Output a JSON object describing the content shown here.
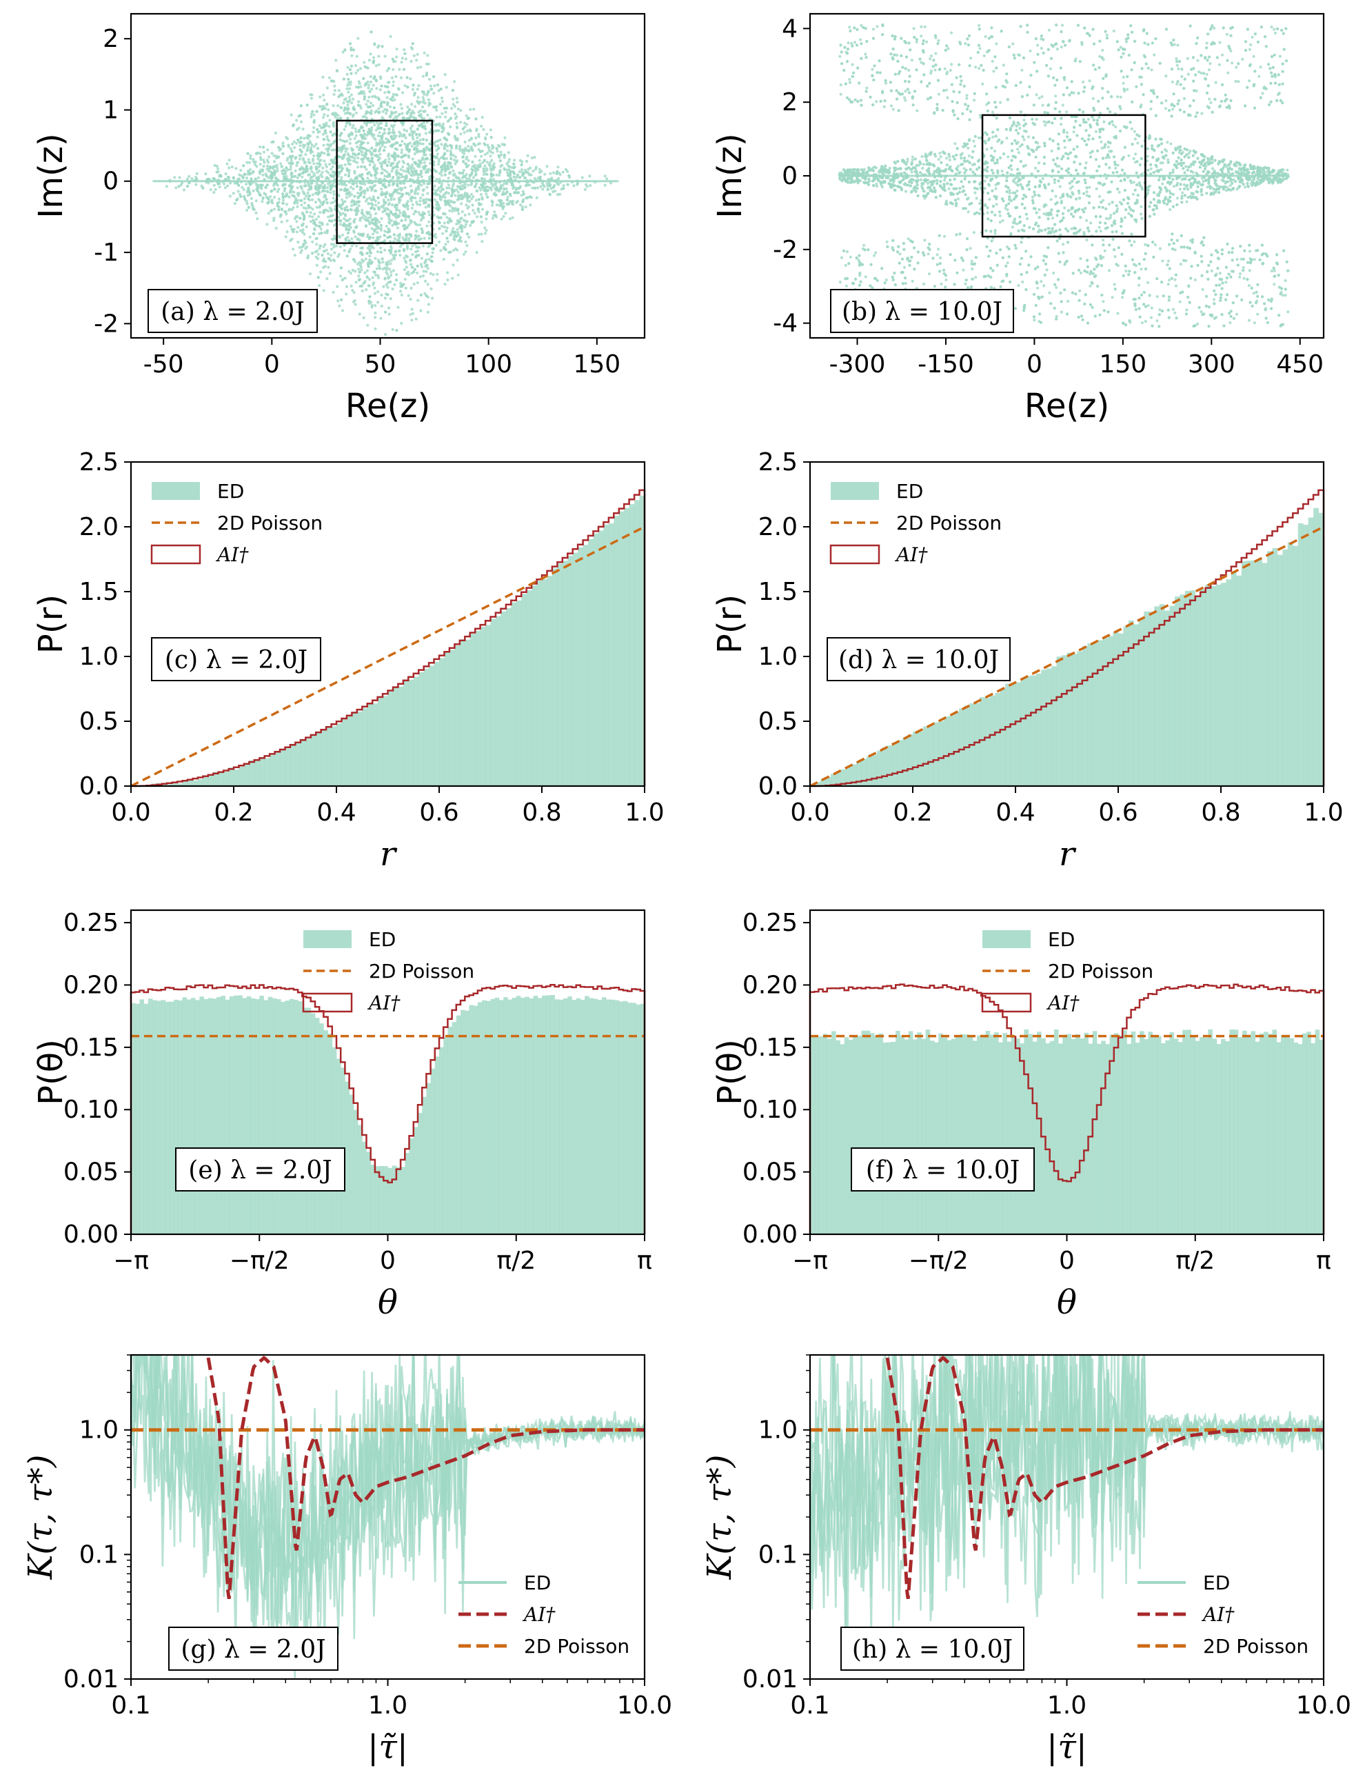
{
  "colors": {
    "ed": "#9fd8c4",
    "ai": "#a8282a",
    "poisson": "#cc6a14",
    "frame": "#000000"
  },
  "legend": {
    "ed": "ED",
    "poisson": "2D Poisson",
    "ai": "AI†"
  },
  "chart_data": [
    {
      "id": "a",
      "type": "scatter",
      "panel_label": "(a) λ = 2.0J",
      "xlabel": "Re(z)",
      "ylabel": "Im(z)",
      "xlim": [
        -65,
        172
      ],
      "ylim": [
        -2.2,
        2.35
      ],
      "xticks": [
        -50,
        0,
        50,
        100,
        150
      ],
      "xticklabels": [
        "-50",
        "0",
        "50",
        "100",
        "150"
      ],
      "yticks": [
        -2,
        -1,
        0,
        1,
        2
      ],
      "yticklabels": [
        "-2",
        "-1",
        "0",
        "1",
        "2"
      ],
      "xrange_points": [
        -55,
        160
      ],
      "center": 52,
      "height_max": 2.1,
      "box": {
        "x": [
          30,
          74
        ],
        "y": [
          -0.87,
          0.85
        ]
      }
    },
    {
      "id": "b",
      "type": "scatter",
      "panel_label": "(b) λ = 10.0J",
      "xlabel": "Re(z)",
      "ylabel": "Im(z)",
      "xlim": [
        -380,
        490
      ],
      "ylim": [
        -4.4,
        4.4
      ],
      "xticks": [
        -300,
        -150,
        0,
        150,
        300,
        450
      ],
      "xticklabels": [
        "-300",
        "-150",
        "0",
        "150",
        "300",
        "450"
      ],
      "yticks": [
        -4,
        -2,
        0,
        2,
        4
      ],
      "yticklabels": [
        "-4",
        "-2",
        "0",
        "2",
        "4"
      ],
      "xrange_points": [
        -330,
        430
      ],
      "center": 50,
      "height_max": 4.1,
      "box": {
        "x": [
          -88,
          188
        ],
        "y": [
          -1.65,
          1.65
        ]
      }
    },
    {
      "id": "c",
      "type": "histogram",
      "panel_label": "(c) λ = 2.0J",
      "xlabel": "r",
      "ylabel": "P(r)",
      "xlim": [
        0,
        1
      ],
      "ylim": [
        0,
        2.5
      ],
      "xticks": [
        0,
        0.2,
        0.4,
        0.6,
        0.8,
        1.0
      ],
      "xticklabels": [
        "0.0",
        "0.2",
        "0.4",
        "0.6",
        "0.8",
        "1.0"
      ],
      "yticks": [
        0,
        0.5,
        1.0,
        1.5,
        2.0,
        2.5
      ],
      "yticklabels": [
        "0.0",
        "0.5",
        "1.0",
        "1.5",
        "2.0",
        "2.5"
      ],
      "ed_curve": "ai",
      "ed_scale": 0.985,
      "poisson_line": {
        "x": [
          0,
          1
        ],
        "y": [
          0,
          2.0
        ]
      },
      "ai_curve_note": "AI-dagger r-distribution rising from 0 to 2.3"
    },
    {
      "id": "d",
      "type": "histogram",
      "panel_label": "(d) λ = 10.0J",
      "xlabel": "r",
      "ylabel": "P(r)",
      "xlim": [
        0,
        1
      ],
      "ylim": [
        0,
        2.5
      ],
      "xticks": [
        0,
        0.2,
        0.4,
        0.6,
        0.8,
        1.0
      ],
      "xticklabels": [
        "0.0",
        "0.2",
        "0.4",
        "0.6",
        "0.8",
        "1.0"
      ],
      "yticks": [
        0,
        0.5,
        1.0,
        1.5,
        2.0,
        2.5
      ],
      "yticklabels": [
        "0.0",
        "0.5",
        "1.0",
        "1.5",
        "2.0",
        "2.5"
      ],
      "ed_curve": "poisson",
      "ed_scale": 1.0,
      "poisson_line": {
        "x": [
          0,
          1
        ],
        "y": [
          0,
          2.0
        ]
      }
    },
    {
      "id": "e",
      "type": "histogram",
      "panel_label": "(e) λ = 2.0J",
      "xlabel": "θ",
      "ylabel": "P(θ)",
      "xlim": [
        -3.14159,
        3.14159
      ],
      "ylim": [
        0,
        0.26
      ],
      "xticks": [
        -3.14159,
        -1.5708,
        0,
        1.5708,
        3.14159
      ],
      "xticklabels": [
        "−π",
        "−π/2",
        "0",
        "π/2",
        "π"
      ],
      "yticks": [
        0,
        0.05,
        0.1,
        0.15,
        0.2,
        0.25
      ],
      "yticklabels": [
        "0.00",
        "0.05",
        "0.10",
        "0.15",
        "0.20",
        "0.25"
      ],
      "ed_curve": "ai",
      "ed_scale": 0.955,
      "poisson_level": 0.159,
      "ai_dip_min": 0.048,
      "ai_plateau": 0.195
    },
    {
      "id": "f",
      "type": "histogram",
      "panel_label": "(f) λ = 10.0J",
      "xlabel": "θ",
      "ylabel": "P(θ)",
      "xlim": [
        -3.14159,
        3.14159
      ],
      "ylim": [
        0,
        0.26
      ],
      "xticks": [
        -3.14159,
        -1.5708,
        0,
        1.5708,
        3.14159
      ],
      "xticklabels": [
        "−π",
        "−π/2",
        "0",
        "π/2",
        "π"
      ],
      "yticks": [
        0,
        0.05,
        0.1,
        0.15,
        0.2,
        0.25
      ],
      "yticklabels": [
        "0.00",
        "0.05",
        "0.10",
        "0.15",
        "0.20",
        "0.25"
      ],
      "ed_curve": "poisson",
      "ed_scale": 1.0,
      "poisson_level": 0.159,
      "ai_dip_min": 0.048,
      "ai_plateau": 0.195
    },
    {
      "id": "g",
      "type": "line",
      "panel_label": "(g) λ = 2.0J",
      "xlabel": "|τ̃|",
      "ylabel": "K(τ, τ*)",
      "xscale": "log",
      "yscale": "log",
      "xlim": [
        0.1,
        10.0
      ],
      "ylim": [
        0.01,
        4.0
      ],
      "xticks": [
        0.1,
        1.0,
        10.0
      ],
      "xticklabels": [
        "0.1",
        "1.0",
        "10.0"
      ],
      "yticks": [
        0.01,
        0.1,
        1.0
      ],
      "yticklabels": [
        "0.01",
        "0.1",
        "1.0"
      ],
      "poisson_level": 1.0,
      "ai_curve": [
        [
          0.2,
          3.8
        ],
        [
          0.22,
          1.2
        ],
        [
          0.24,
          0.04
        ],
        [
          0.27,
          1.0
        ],
        [
          0.3,
          3.2
        ],
        [
          0.33,
          3.8
        ],
        [
          0.36,
          3.2
        ],
        [
          0.4,
          1.2
        ],
        [
          0.44,
          0.1
        ],
        [
          0.48,
          0.6
        ],
        [
          0.52,
          0.9
        ],
        [
          0.56,
          0.5
        ],
        [
          0.6,
          0.2
        ],
        [
          0.65,
          0.4
        ],
        [
          0.7,
          0.45
        ],
        [
          0.75,
          0.3
        ],
        [
          0.8,
          0.26
        ],
        [
          0.9,
          0.35
        ],
        [
          1.0,
          0.38
        ],
        [
          1.2,
          0.42
        ],
        [
          1.5,
          0.5
        ],
        [
          2.0,
          0.62
        ],
        [
          2.5,
          0.78
        ],
        [
          3.0,
          0.9
        ],
        [
          4.0,
          0.97
        ],
        [
          6.0,
          1.0
        ],
        [
          10.0,
          1.0
        ]
      ],
      "ed_trend": [
        [
          0.1,
          2.5
        ],
        [
          0.15,
          1.0
        ],
        [
          0.2,
          0.4
        ],
        [
          0.3,
          0.12
        ],
        [
          0.45,
          0.1
        ],
        [
          0.6,
          0.2
        ],
        [
          0.8,
          0.35
        ],
        [
          1.0,
          0.45
        ],
        [
          1.5,
          0.6
        ],
        [
          2.0,
          0.75
        ],
        [
          3.0,
          0.9
        ],
        [
          5.0,
          1.0
        ],
        [
          10.0,
          1.0
        ]
      ]
    },
    {
      "id": "h",
      "type": "line",
      "panel_label": "(h) λ = 10.0J",
      "xlabel": "|τ̃|",
      "ylabel": "K(τ, τ*)",
      "xscale": "log",
      "yscale": "log",
      "xlim": [
        0.1,
        10.0
      ],
      "ylim": [
        0.01,
        4.0
      ],
      "xticks": [
        0.1,
        1.0,
        10.0
      ],
      "xticklabels": [
        "0.1",
        "1.0",
        "10.0"
      ],
      "yticks": [
        0.01,
        0.1,
        1.0
      ],
      "yticklabels": [
        "0.01",
        "0.1",
        "1.0"
      ],
      "poisson_level": 1.0,
      "ai_curve": [
        [
          0.2,
          3.8
        ],
        [
          0.22,
          1.2
        ],
        [
          0.24,
          0.04
        ],
        [
          0.27,
          1.0
        ],
        [
          0.3,
          3.2
        ],
        [
          0.33,
          3.8
        ],
        [
          0.36,
          3.2
        ],
        [
          0.4,
          1.2
        ],
        [
          0.44,
          0.1
        ],
        [
          0.48,
          0.6
        ],
        [
          0.52,
          0.9
        ],
        [
          0.56,
          0.5
        ],
        [
          0.6,
          0.2
        ],
        [
          0.65,
          0.4
        ],
        [
          0.7,
          0.45
        ],
        [
          0.75,
          0.3
        ],
        [
          0.8,
          0.26
        ],
        [
          0.9,
          0.35
        ],
        [
          1.0,
          0.38
        ],
        [
          1.2,
          0.42
        ],
        [
          1.5,
          0.5
        ],
        [
          2.0,
          0.62
        ],
        [
          2.5,
          0.78
        ],
        [
          3.0,
          0.9
        ],
        [
          4.0,
          0.97
        ],
        [
          6.0,
          1.0
        ],
        [
          10.0,
          1.0
        ]
      ],
      "ed_trend": [
        [
          0.1,
          0.3
        ],
        [
          0.2,
          0.5
        ],
        [
          0.5,
          0.8
        ],
        [
          1.0,
          1.0
        ],
        [
          3.0,
          1.0
        ],
        [
          10.0,
          1.0
        ]
      ]
    }
  ]
}
